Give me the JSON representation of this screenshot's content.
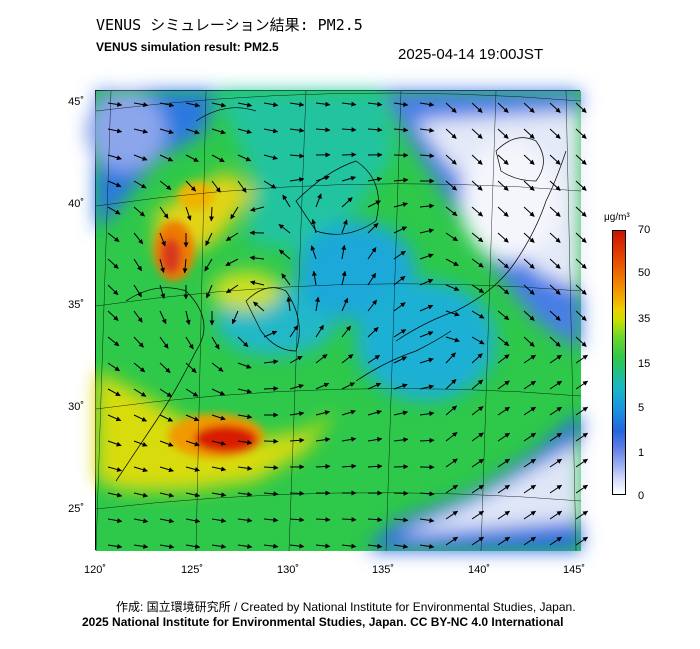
{
  "header": {
    "title_jp": "VENUS シミュレーション結果: PM2.5",
    "title_en": "VENUS simulation result: PM2.5",
    "timestamp": "2025-04-14 19:00JST"
  },
  "map": {
    "lon_ticks": [
      "120˚",
      "125˚",
      "130˚",
      "135˚",
      "140˚",
      "145˚"
    ],
    "lat_ticks": [
      "45˚",
      "40˚",
      "35˚",
      "30˚",
      "25˚"
    ],
    "variable": "PM2.5",
    "wind_vectors": true
  },
  "colorbar": {
    "unit": "μg/m³",
    "labels": [
      "70",
      "50",
      "35",
      "15",
      "5",
      "1",
      "0"
    ]
  },
  "footer": {
    "credit_line1": "作成: 国立環境研究所 / Created by National Institute for Environmental Studies, Japan.",
    "credit_line2": "2025 National Institute for Environmental Studies, Japan. CC BY-NC 4.0 International"
  },
  "colors": {
    "high": "#d81e00",
    "mid": "#2ec84a",
    "low": "#2a6ee0",
    "clean": "#e8ecf8"
  }
}
